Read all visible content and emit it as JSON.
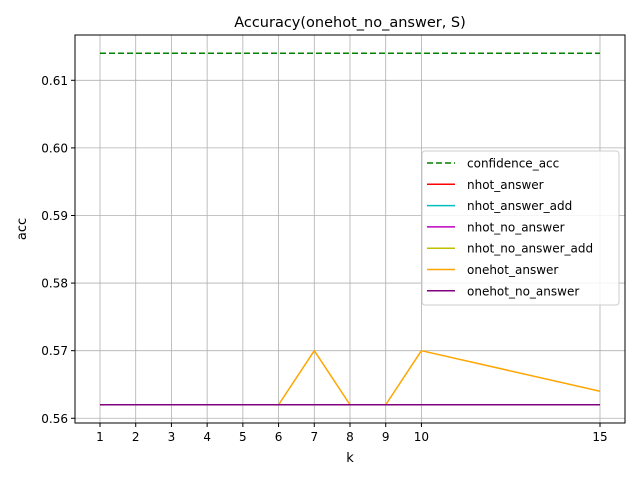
{
  "chart_data": {
    "type": "line",
    "title": "Accuracy(onehot_no_answer, S)",
    "xlabel": "k",
    "ylabel": "acc",
    "x": [
      1,
      2,
      3,
      4,
      5,
      6,
      7,
      8,
      9,
      10,
      15
    ],
    "xticks": [
      1,
      2,
      3,
      4,
      5,
      6,
      7,
      8,
      9,
      10,
      15
    ],
    "xlim": [
      0.3,
      15.7
    ],
    "yticks": [
      "0.56",
      "0.57",
      "0.58",
      "0.59",
      "0.60",
      "0.61"
    ],
    "ylim": [
      0.5593,
      0.6167
    ],
    "grid": true,
    "legend_position": "center-right",
    "series": [
      {
        "name": "confidence_acc",
        "color": "#008000",
        "dashed": true,
        "values": [
          0.614,
          0.614,
          0.614,
          0.614,
          0.614,
          0.614,
          0.614,
          0.614,
          0.614,
          0.614,
          0.614
        ]
      },
      {
        "name": "nhot_answer",
        "color": "#ff0000",
        "dashed": false,
        "values": [
          0.562,
          0.562,
          0.562,
          0.562,
          0.562,
          0.562,
          0.562,
          0.562,
          0.562,
          0.562,
          0.562
        ]
      },
      {
        "name": "nhot_answer_add",
        "color": "#00bfbf",
        "dashed": false,
        "values": [
          0.562,
          0.562,
          0.562,
          0.562,
          0.562,
          0.562,
          0.562,
          0.562,
          0.562,
          0.562,
          0.562
        ]
      },
      {
        "name": "nhot_no_answer",
        "color": "#bf00bf",
        "dashed": false,
        "values": [
          0.562,
          0.562,
          0.562,
          0.562,
          0.562,
          0.562,
          0.562,
          0.562,
          0.562,
          0.562,
          0.562
        ]
      },
      {
        "name": "nhot_no_answer_add",
        "color": "#bfbf00",
        "dashed": false,
        "values": [
          0.562,
          0.562,
          0.562,
          0.562,
          0.562,
          0.562,
          0.562,
          0.562,
          0.562,
          0.562,
          0.562
        ]
      },
      {
        "name": "onehot_answer",
        "color": "#ffa500",
        "dashed": false,
        "values": [
          0.562,
          0.562,
          0.562,
          0.562,
          0.562,
          0.562,
          0.57,
          0.562,
          0.562,
          0.57,
          0.564
        ]
      },
      {
        "name": "onehot_no_answer",
        "color": "#800080",
        "dashed": false,
        "values": [
          0.562,
          0.562,
          0.562,
          0.562,
          0.562,
          0.562,
          0.562,
          0.562,
          0.562,
          0.562,
          0.562
        ]
      }
    ]
  }
}
